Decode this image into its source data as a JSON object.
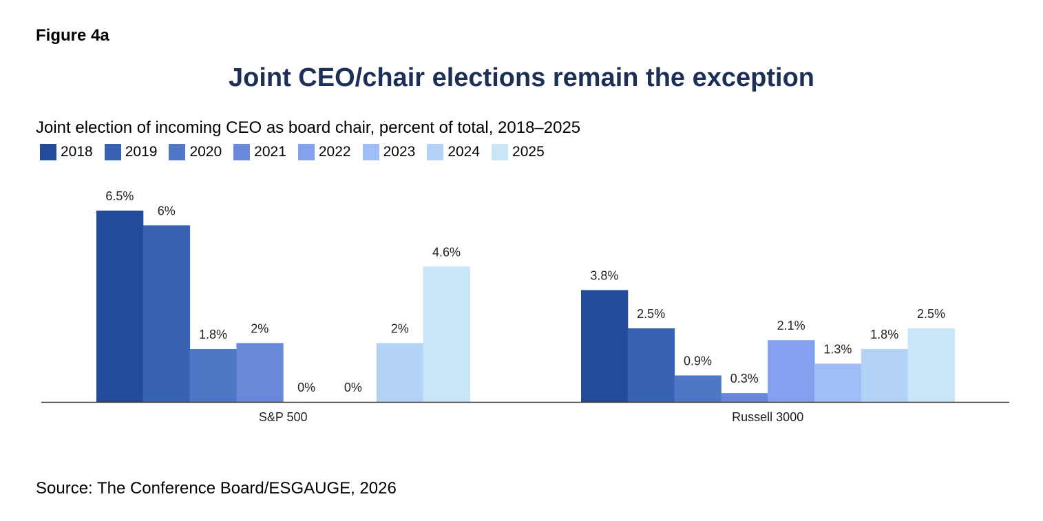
{
  "figure_label": "Figure 4a",
  "source": "Source: The Conference Board/ESGAUGE, 2026",
  "colors": [
    "#244b9b",
    "#3862b3",
    "#5077c6",
    "#6888da",
    "#84a1f0",
    "#9fbdf7",
    "#b2d3f6",
    "#c8e6f8"
  ],
  "chart_data": {
    "type": "bar",
    "title": "Joint CEO/chair elections remain the exception",
    "subtitle": "Joint election of incoming CEO as board chair, percent of total, 2018–2025",
    "categories": [
      "S&P 500",
      "Russell 3000"
    ],
    "series": [
      {
        "name": "2018",
        "values": [
          6.5,
          3.8
        ],
        "labels": [
          "6.5%",
          "3.8%"
        ]
      },
      {
        "name": "2019",
        "values": [
          6,
          2.5
        ],
        "labels": [
          "6%",
          "2.5%"
        ]
      },
      {
        "name": "2020",
        "values": [
          1.8,
          0.9
        ],
        "labels": [
          "1.8%",
          "0.9%"
        ]
      },
      {
        "name": "2021",
        "values": [
          2,
          0.3
        ],
        "labels": [
          "2%",
          "0.3%"
        ]
      },
      {
        "name": "2022",
        "values": [
          0,
          2.1
        ],
        "labels": [
          "0%",
          "2.1%"
        ]
      },
      {
        "name": "2023",
        "values": [
          0,
          1.3
        ],
        "labels": [
          "0%",
          "1.3%"
        ]
      },
      {
        "name": "2024",
        "values": [
          2,
          1.8
        ],
        "labels": [
          "2%",
          "1.8%"
        ]
      },
      {
        "name": "2025",
        "values": [
          4.6,
          2.5
        ],
        "labels": [
          "4.6%",
          "2.5%"
        ]
      }
    ],
    "ylim": [
      0,
      6.5
    ],
    "legend_position": "top-left",
    "grid": false
  }
}
